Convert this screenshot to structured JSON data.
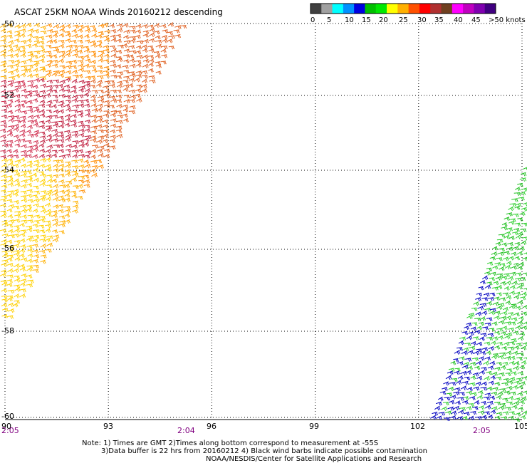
{
  "title": "ASCAT 25KM NOAA Winds 20160212 descending",
  "colorbar": {
    "colors": [
      "#404040",
      "#a0a0a0",
      "#00ffff",
      "#0090ff",
      "#0000e0",
      "#00c000",
      "#00e800",
      "#ffff00",
      "#ffb000",
      "#ff5000",
      "#ff0000",
      "#b03030",
      "#704020",
      "#ff00ff",
      "#c000c0",
      "#8000b0",
      "#400080"
    ],
    "labels": [
      "0",
      "5",
      "10",
      "15",
      "20",
      "25",
      "30",
      "35",
      "40",
      "45",
      ">50 knots"
    ]
  },
  "lat_labels": [
    "-50",
    "-52",
    "-54",
    "-56",
    "-58",
    "-60"
  ],
  "lon_labels": [
    "90",
    "93",
    "96",
    "99",
    "102",
    "105"
  ],
  "times": [
    "2:05",
    "2:04",
    "2:05"
  ],
  "notes": [
    "Note: 1) Times are GMT 2)Times along bottom correspond to measurement at -55S",
    "3)Data buffer is 22 hrs from 20160212 4) Black wind barbs indicate possible contamination",
    "NOAA/NESDIS/Center for Satellite Applications and Research"
  ],
  "swaths": [
    {
      "name": "west",
      "lon_range": [
        90,
        95.2
      ],
      "colors": [
        "#ffd000",
        "#ffb000",
        "#ff8c00",
        "#e06020",
        "#d03050",
        "#c02040"
      ]
    },
    {
      "name": "east",
      "lon_range": [
        102.4,
        105
      ],
      "colors": [
        "#20c020",
        "#30d030",
        "#0000c0"
      ]
    }
  ]
}
